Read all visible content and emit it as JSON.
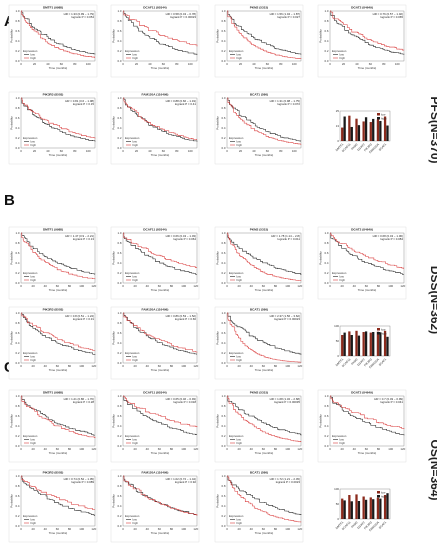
{
  "chart_data": [
    {
      "panel": "A",
      "side_label": "PFS(N=370)",
      "x_ticks": [
        "0",
        "20",
        "40",
        "60",
        "80",
        "100"
      ],
      "xlabel": "Time (months)",
      "ylabel": "Probability",
      "kms": [
        {
          "type": "line",
          "title": "DMTF1 (9988)",
          "hr": "HR = 1.33 (0.99 − 1.79)",
          "logrank": "logrank P = 0.054",
          "xmax": 110
        },
        {
          "type": "line",
          "title": "DCAF11 (80344)",
          "hr": "HR = 0.58 (0.43 − 0.78)",
          "logrank": "logrank P = 0.00023",
          "xmax": 110
        },
        {
          "type": "line",
          "title": "PKM2 (5315)",
          "hr": "HR = 1.56 (1.04 − 1.87)",
          "logrank": "logrank P = 0.027",
          "xmax": 110
        },
        {
          "type": "line",
          "title": "DGAT2 (84649)",
          "hr": "HR = 0.76 (0.57 − 1.02)",
          "logrank": "logrank P = 0.065",
          "xmax": 110
        },
        {
          "type": "line",
          "title": "PIK3R3 (8503)",
          "hr": "HR = 0.81 (0.6 − 1.08)",
          "logrank": "logrank P = 0.15",
          "xmax": 110
        },
        {
          "type": "line",
          "title": "FAM120A (116496)",
          "hr": "HR = 0.88 (0.66 − 1.19)",
          "logrank": "logrank P = 0.41",
          "xmax": 110
        },
        {
          "type": "line",
          "title": "BCAT1 (586)",
          "hr": "HR = 1.31 (0.98 − 1.75)",
          "logrank": "logrank P = 0.072",
          "xmax": 110
        }
      ],
      "bars": {
        "type": "bar",
        "categories": [
          "DMTF1",
          "DCAF11",
          "PKM2",
          "DGAT2",
          "PIK3R3",
          "FAM120A",
          "BCAT1"
        ],
        "series": [
          {
            "name": "low",
            "values": [
              11.2,
              21.1,
              18.6,
              16.3,
              15.8,
              17.9,
              20.4
            ]
          },
          {
            "name": "high",
            "values": [
              20.4,
              11.7,
              13.2,
              19.8,
              18.4,
              16.7,
              12.9
            ]
          }
        ],
        "ylim": [
          0,
          25
        ]
      }
    },
    {
      "panel": "B",
      "side_label": "DSS(N=362)",
      "x_ticks": [
        "0",
        "20",
        "40",
        "60",
        "80",
        "100",
        "120"
      ],
      "xlabel": "Time (months)",
      "ylabel": "Probability",
      "kms": [
        {
          "type": "line",
          "title": "DMTF1 (9988)",
          "hr": "HR = 1.47 (0.9 − 2.21)",
          "logrank": "logrank P = 0.13",
          "xmax": 122
        },
        {
          "type": "line",
          "title": "DCAF11 (80344)",
          "hr": "HR = 0.66 (0.43 − 1.03)",
          "logrank": "logrank P = 0.064",
          "xmax": 122
        },
        {
          "type": "line",
          "title": "PKM2 (5315)",
          "hr": "HR = 1.78 (1.14 − 2.8)",
          "logrank": "logrank P = 0.011",
          "xmax": 122
        },
        {
          "type": "line",
          "title": "DGAT2 (84649)",
          "hr": "HR = 0.68 (0.43 − 1.06)",
          "logrank": "logrank P = 0.084",
          "xmax": 122
        },
        {
          "type": "line",
          "title": "PIK3R3 (8503)",
          "hr": "HR = 0.8 (0.51 − 1.24)",
          "logrank": "logrank P = 0.31",
          "xmax": 122
        },
        {
          "type": "line",
          "title": "FAM120A (116496)",
          "hr": "HR = 0.86 (0.53 − 1.52)",
          "logrank": "logrank P = 0.66",
          "xmax": 122
        },
        {
          "type": "line",
          "title": "BCAT1 (586)",
          "hr": "HR = 2.37 (1.56 − 3.62)",
          "logrank": "logrank P = 0.00023",
          "xmax": 122
        }
      ],
      "bars": {
        "type": "bar",
        "categories": [
          "DMTF1",
          "DCAF11",
          "PKM2",
          "DGAT2",
          "PIK3R3",
          "FAM120A",
          "BCAT1"
        ],
        "series": [
          {
            "name": "low",
            "values": [
              70,
              82,
              84,
              80,
              78,
              81,
              84
            ]
          },
          {
            "name": "high",
            "values": [
              78,
              70,
              68,
              82,
              80,
              79,
              64
            ]
          }
        ],
        "ylim": [
          0,
          100
        ]
      }
    },
    {
      "panel": "C",
      "side_label": "OS(N=364)",
      "x_ticks": [
        "0",
        "20",
        "40",
        "60",
        "80",
        "100",
        "120"
      ],
      "xlabel": "Time (months)",
      "ylabel": "Probability",
      "kms": [
        {
          "type": "line",
          "title": "DMTF1 (9988)",
          "hr": "HR = 1.21 (0.86 − 1.70)",
          "logrank": "logrank P = 0.28",
          "xmax": 122
        },
        {
          "type": "line",
          "title": "DCAF11 (80344)",
          "hr": "HR = 0.65 (0.46 − 0.93)",
          "logrank": "logrank P = 0.018",
          "xmax": 122
        },
        {
          "type": "line",
          "title": "PKM2 (5315)",
          "hr": "HR = 1.68 (1.32 − 2.68)",
          "logrank": "logrank P = 0.00035",
          "xmax": 122
        },
        {
          "type": "line",
          "title": "DGAT2 (84649)",
          "hr": "HR = 0.7 (0.49 − 0.99)",
          "logrank": "logrank P = 0.041",
          "xmax": 122
        },
        {
          "type": "line",
          "title": "PIK3R3 (8503)",
          "hr": "HR = 0.74 (0.52 − 1.05)",
          "logrank": "logrank P = 0.089",
          "xmax": 122
        },
        {
          "type": "line",
          "title": "FAM120A (116496)",
          "hr": "HR = 1.02 (0.72 − 1.44)",
          "logrank": "logrank P = 0.92",
          "xmax": 122
        },
        {
          "type": "line",
          "title": "BCAT1 (586)",
          "hr": "HR = 1.72 (1.21 − 2.45)",
          "logrank": "logrank P = 0.0023",
          "xmax": 122
        }
      ],
      "bars": {
        "type": "bar",
        "categories": [
          "DMTF1",
          "DCAF11",
          "PKM2",
          "DGAT2",
          "PIK3R3",
          "FAM120A",
          "BCAT1"
        ],
        "series": [
          {
            "name": "low",
            "values": [
              68,
              80,
              82,
              75,
              72,
              71,
              80
            ]
          },
          {
            "name": "high",
            "values": [
              62,
              59,
              60,
              64,
              66,
              68,
              86
            ]
          }
        ],
        "ylim": [
          0,
          100
        ]
      }
    }
  ],
  "km_y_ticks": [
    "0.0",
    "0.2",
    "0.4",
    "0.6",
    "0.8",
    "1.0"
  ],
  "legend": {
    "title": "Expression",
    "low": "low",
    "high": "high"
  },
  "colors": {
    "low": "#222222",
    "high": "#d93b3b",
    "bar_low": "#8b2a1c",
    "bar_high": "#1a1a1a"
  }
}
